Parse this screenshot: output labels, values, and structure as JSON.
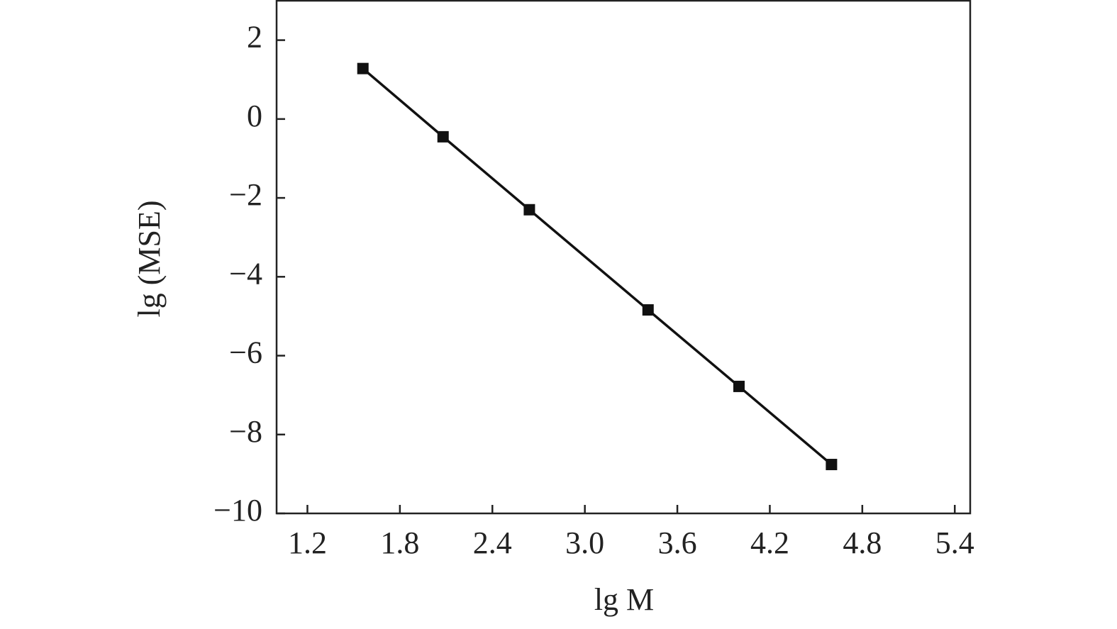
{
  "chart_data": {
    "type": "line",
    "x_label": "lg M",
    "y_label": "lg (MSE)",
    "x": [
      1.56,
      2.08,
      2.64,
      3.41,
      4.0,
      4.6
    ],
    "series": [
      {
        "color": "#111111",
        "values": [
          1.28,
          -0.45,
          -2.3,
          -4.84,
          -6.78,
          -8.76
        ]
      }
    ],
    "xlim": [
      1.0,
      5.5
    ],
    "xticks": [
      {
        "value": 1.2,
        "label": "1.2"
      },
      1.8,
      2.4,
      {
        "value": 3.0,
        "label": "3.0"
      },
      3.6,
      4.2,
      4.8,
      5.4
    ],
    "ylim": [
      -10,
      3
    ],
    "yticks": [
      {
        "value": -10,
        "label": "−10"
      },
      {
        "value": -8,
        "label": "−8"
      },
      {
        "value": -6,
        "label": "−6"
      },
      {
        "value": -4,
        "label": "−4"
      },
      {
        "value": -2,
        "label": "−2"
      },
      0,
      2
    ],
    "grid": false,
    "marker": "square"
  }
}
